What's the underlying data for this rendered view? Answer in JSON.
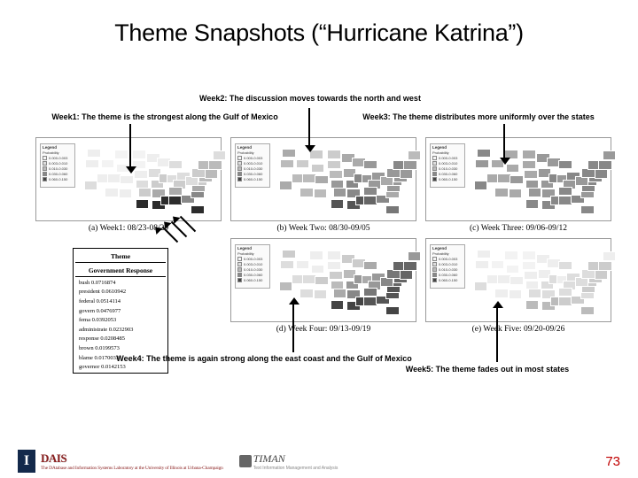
{
  "title": "Theme Snapshots (“Hurricane Katrina”)",
  "captions": {
    "w1": "Week1: The theme is the strongest along the Gulf of Mexico",
    "w2": "Week2: The discussion moves towards the north and west",
    "w3": "Week3: The theme distributes more uniformly over the states",
    "w4": "Week4: The theme is again strong along the east coast and the Gulf of Mexico",
    "w5": "Week5: The theme fades out in most states"
  },
  "maps": [
    {
      "id": "a",
      "label": "(a) Week1: 08/23-08/29",
      "highlight": "gulf-strong",
      "shades": {
        "TX": "#2c2c2c",
        "LA": "#2c2c2c",
        "MS": "#2c2c2c",
        "AL": "#2c2c2c",
        "FL": "#2c2c2c",
        "GA": "#888",
        "SC": "#888",
        "NC": "#aaa",
        "TN": "#aaa",
        "AR": "#aaa",
        "MO": "#ccc",
        "OK": "#ccc",
        "KS": "#ddd",
        "IA": "#ddd",
        "IL": "#ccc",
        "IN": "#ddd",
        "OH": "#ddd",
        "KY": "#ccc",
        "VA": "#ccc",
        "NY": "#bbb",
        "PA": "#ccc",
        "NM": "#eee",
        "AZ": "#eee",
        "CO": "#eee",
        "UT": "#eee",
        "NV": "#eee",
        "CA": "#ddd",
        "OR": "#eee",
        "WA": "#eee",
        "ID": "#f3f3f3",
        "MT": "#f3f3f3",
        "WY": "#f3f3f3",
        "ND": "#f3f3f3",
        "SD": "#f3f3f3",
        "NE": "#eee",
        "MN": "#eee",
        "WI": "#eee",
        "MI": "#ddd",
        "WV": "#ddd",
        "MD": "#bbb",
        "NJ": "#bbb",
        "MA": "#bbb",
        "ME": "#ddd"
      }
    },
    {
      "id": "b",
      "label": "(b) Week Two: 08/30-09/05",
      "highlight": "north-west",
      "shades": {
        "TX": "#555",
        "LA": "#555",
        "MS": "#555",
        "AL": "#666",
        "FL": "#777",
        "GA": "#888",
        "SC": "#aaa",
        "NC": "#999",
        "TN": "#888",
        "AR": "#888",
        "MO": "#888",
        "OK": "#999",
        "KS": "#999",
        "IA": "#aaa",
        "IL": "#888",
        "IN": "#999",
        "OH": "#999",
        "KY": "#999",
        "VA": "#999",
        "NY": "#888",
        "PA": "#999",
        "NM": "#bbb",
        "AZ": "#bbb",
        "CO": "#aaa",
        "UT": "#bbb",
        "NV": "#bbb",
        "CA": "#aaa",
        "OR": "#bbb",
        "WA": "#aaa",
        "ID": "#ccc",
        "MT": "#ccc",
        "WY": "#ccc",
        "ND": "#ccc",
        "SD": "#ccc",
        "NE": "#bbb",
        "MN": "#aaa",
        "WI": "#aaa",
        "MI": "#999",
        "WV": "#aaa",
        "MD": "#999",
        "NJ": "#999",
        "MA": "#999",
        "ME": "#bbb"
      }
    },
    {
      "id": "c",
      "label": "(c) Week Three: 09/06-09/12",
      "highlight": "uniform",
      "shades": {
        "TX": "#888",
        "LA": "#888",
        "MS": "#888",
        "AL": "#888",
        "FL": "#888",
        "GA": "#888",
        "SC": "#999",
        "NC": "#888",
        "TN": "#888",
        "AR": "#999",
        "MO": "#999",
        "OK": "#999",
        "KS": "#999",
        "IA": "#999",
        "IL": "#888",
        "IN": "#999",
        "OH": "#888",
        "KY": "#999",
        "VA": "#888",
        "NY": "#888",
        "PA": "#888",
        "NM": "#aaa",
        "AZ": "#aaa",
        "CO": "#999",
        "UT": "#aaa",
        "NV": "#aaa",
        "CA": "#888",
        "OR": "#999",
        "WA": "#888",
        "ID": "#aaa",
        "MT": "#aaa",
        "WY": "#aaa",
        "ND": "#aaa",
        "SD": "#aaa",
        "NE": "#aaa",
        "MN": "#999",
        "WI": "#999",
        "MI": "#888",
        "WV": "#999",
        "MD": "#888",
        "NJ": "#888",
        "MA": "#888",
        "ME": "#999"
      }
    },
    {
      "id": "d",
      "label": "(d) Week Four: 09/13-09/19",
      "highlight": "east-gulf",
      "shades": {
        "TX": "#444",
        "LA": "#444",
        "MS": "#444",
        "AL": "#555",
        "FL": "#444",
        "GA": "#555",
        "SC": "#555",
        "NC": "#555",
        "TN": "#777",
        "AR": "#888",
        "MO": "#999",
        "OK": "#aaa",
        "KS": "#bbb",
        "IA": "#bbb",
        "IL": "#999",
        "IN": "#aaa",
        "OH": "#999",
        "KY": "#999",
        "VA": "#666",
        "NY": "#666",
        "PA": "#777",
        "NM": "#ddd",
        "AZ": "#ddd",
        "CO": "#ccc",
        "UT": "#ddd",
        "NV": "#ddd",
        "CA": "#bbb",
        "OR": "#ddd",
        "WA": "#ccc",
        "ID": "#eee",
        "MT": "#eee",
        "WY": "#eee",
        "ND": "#eee",
        "SD": "#eee",
        "NE": "#ccc",
        "MN": "#ccc",
        "WI": "#ccc",
        "MI": "#aaa",
        "WV": "#888",
        "MD": "#666",
        "NJ": "#666",
        "MA": "#666",
        "ME": "#999"
      }
    },
    {
      "id": "e",
      "label": "(e) Week Five: 09/20-09/26",
      "highlight": "fade",
      "shades": {
        "TX": "#bbb",
        "LA": "#bbb",
        "MS": "#bbb",
        "AL": "#ccc",
        "FL": "#bbb",
        "GA": "#ccc",
        "SC": "#ddd",
        "NC": "#ccc",
        "TN": "#ddd",
        "AR": "#ddd",
        "MO": "#ddd",
        "OK": "#ddd",
        "KS": "#eee",
        "IA": "#eee",
        "IL": "#ddd",
        "IN": "#eee",
        "OH": "#ddd",
        "KY": "#ddd",
        "VA": "#ccc",
        "NY": "#ccc",
        "PA": "#ddd",
        "NM": "#eee",
        "AZ": "#eee",
        "CO": "#eee",
        "UT": "#eee",
        "NV": "#eee",
        "CA": "#ddd",
        "OR": "#eee",
        "WA": "#eee",
        "ID": "#f3f3f3",
        "MT": "#f3f3f3",
        "WY": "#f3f3f3",
        "ND": "#f3f3f3",
        "SD": "#f3f3f3",
        "NE": "#eee",
        "MN": "#eee",
        "WI": "#eee",
        "MI": "#ddd",
        "WV": "#ddd",
        "MD": "#ccc",
        "NJ": "#ccc",
        "MA": "#ccc",
        "ME": "#eee"
      }
    }
  ],
  "legend": {
    "title": "Legend",
    "sub": "Probability",
    "bins": [
      {
        "color": "#f3f3f3",
        "label": "0.000-0.003"
      },
      {
        "color": "#ddd",
        "label": "0.003-0.010"
      },
      {
        "color": "#bbb",
        "label": "0.010-0.030"
      },
      {
        "color": "#888",
        "label": "0.030-0.060"
      },
      {
        "color": "#444",
        "label": "0.060-0.150"
      }
    ]
  },
  "theme_table": {
    "header_top": "Theme",
    "header_sub": "Government Response",
    "rows": [
      "bush 0.0716874",
      "president 0.0610942",
      "federal 0.0514114",
      "govern 0.0476977",
      "fema 0.0392053",
      "administrate 0.0232903",
      "response 0.0208485",
      "brown 0.0199573",
      "blame 0.0170033",
      "governor 0.0142153"
    ]
  },
  "footer": {
    "logo_i": "I",
    "logo_dais": "DAIS",
    "logo_sub": "The DAtabase and Information Systems Laboratory at the University of Illinois at Urbana-Champaign",
    "logo_t": "TIMAN",
    "logo_t_sub": "Text Information Management and Analysis",
    "page": "73"
  },
  "colors": {
    "title": "#000000",
    "accent_red": "#c00000",
    "dais_red": "#8a1f1f",
    "illinois_navy": "#13294b"
  }
}
